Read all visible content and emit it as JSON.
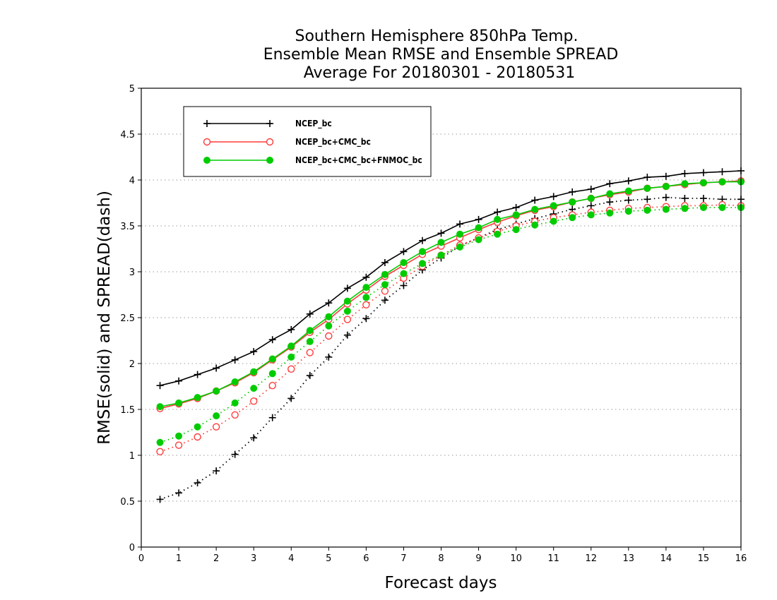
{
  "chart_data": {
    "type": "line",
    "title_lines": [
      "Southern Hemisphere 850hPa Temp.",
      "Ensemble Mean RMSE and Ensemble SPREAD",
      "Average For 20180301 - 20180531"
    ],
    "xlabel": "Forecast days",
    "ylabel": "RMSE(solid) and SPREAD(dash)",
    "xlim": [
      0,
      16
    ],
    "ylim": [
      0,
      5
    ],
    "xticks": [
      "0",
      "1",
      "2",
      "3",
      "4",
      "5",
      "6",
      "7",
      "8",
      "9",
      "10",
      "11",
      "12",
      "13",
      "14",
      "15",
      "16"
    ],
    "yticks": [
      "0",
      "0.5",
      "1",
      "1.5",
      "2",
      "2.5",
      "3",
      "3.5",
      "4",
      "4.5",
      "5"
    ],
    "grid": "horizontal-dotted",
    "legend_position": "top-left",
    "x": [
      0.5,
      1,
      1.5,
      2,
      2.5,
      3,
      3.5,
      4,
      4.5,
      5,
      5.5,
      6,
      6.5,
      7,
      7.5,
      8,
      8.5,
      9,
      9.5,
      10,
      10.5,
      11,
      11.5,
      12,
      12.5,
      13,
      13.5,
      14,
      14.5,
      15,
      15.5,
      16
    ],
    "series": [
      {
        "name": "NCEP_bc",
        "color": "#000000",
        "marker": "plus",
        "rmse": [
          1.76,
          1.81,
          1.88,
          1.95,
          2.04,
          2.13,
          2.26,
          2.37,
          2.54,
          2.66,
          2.82,
          2.94,
          3.1,
          3.22,
          3.34,
          3.42,
          3.52,
          3.57,
          3.65,
          3.7,
          3.78,
          3.82,
          3.87,
          3.9,
          3.96,
          3.99,
          4.03,
          4.04,
          4.07,
          4.08,
          4.09,
          4.1
        ],
        "spread": [
          0.52,
          0.59,
          0.7,
          0.83,
          1.01,
          1.19,
          1.41,
          1.62,
          1.87,
          2.07,
          2.31,
          2.49,
          2.69,
          2.85,
          3.02,
          3.15,
          3.28,
          3.37,
          3.46,
          3.52,
          3.58,
          3.63,
          3.68,
          3.72,
          3.76,
          3.78,
          3.79,
          3.81,
          3.8,
          3.8,
          3.79,
          3.79
        ]
      },
      {
        "name": "NCEP_bc+CMC_bc",
        "color": "#ff3b3b",
        "marker": "open-circle",
        "rmse": [
          1.51,
          1.56,
          1.62,
          1.7,
          1.79,
          1.9,
          2.04,
          2.18,
          2.34,
          2.48,
          2.65,
          2.8,
          2.95,
          3.07,
          3.19,
          3.28,
          3.37,
          3.46,
          3.54,
          3.61,
          3.67,
          3.71,
          3.76,
          3.8,
          3.84,
          3.87,
          3.91,
          3.93,
          3.95,
          3.97,
          3.98,
          3.99
        ],
        "spread": [
          1.04,
          1.11,
          1.2,
          1.31,
          1.44,
          1.59,
          1.76,
          1.94,
          2.12,
          2.3,
          2.48,
          2.64,
          2.79,
          2.93,
          3.06,
          3.18,
          3.29,
          3.37,
          3.44,
          3.5,
          3.55,
          3.59,
          3.62,
          3.65,
          3.67,
          3.69,
          3.7,
          3.71,
          3.72,
          3.72,
          3.73,
          3.72
        ]
      },
      {
        "name": "NCEP_bc+CMC_bc+FNMOC_bc",
        "color": "#00cc00",
        "marker": "filled-circle",
        "rmse": [
          1.53,
          1.57,
          1.63,
          1.7,
          1.8,
          1.91,
          2.05,
          2.19,
          2.36,
          2.51,
          2.68,
          2.83,
          2.97,
          3.1,
          3.22,
          3.32,
          3.41,
          3.48,
          3.57,
          3.62,
          3.68,
          3.72,
          3.76,
          3.8,
          3.85,
          3.88,
          3.91,
          3.93,
          3.96,
          3.97,
          3.98,
          3.98
        ],
        "spread": [
          1.14,
          1.21,
          1.31,
          1.43,
          1.57,
          1.73,
          1.89,
          2.07,
          2.24,
          2.41,
          2.57,
          2.72,
          2.86,
          2.98,
          3.09,
          3.18,
          3.27,
          3.35,
          3.41,
          3.46,
          3.51,
          3.55,
          3.59,
          3.62,
          3.64,
          3.66,
          3.67,
          3.68,
          3.69,
          3.7,
          3.7,
          3.7
        ]
      }
    ]
  }
}
